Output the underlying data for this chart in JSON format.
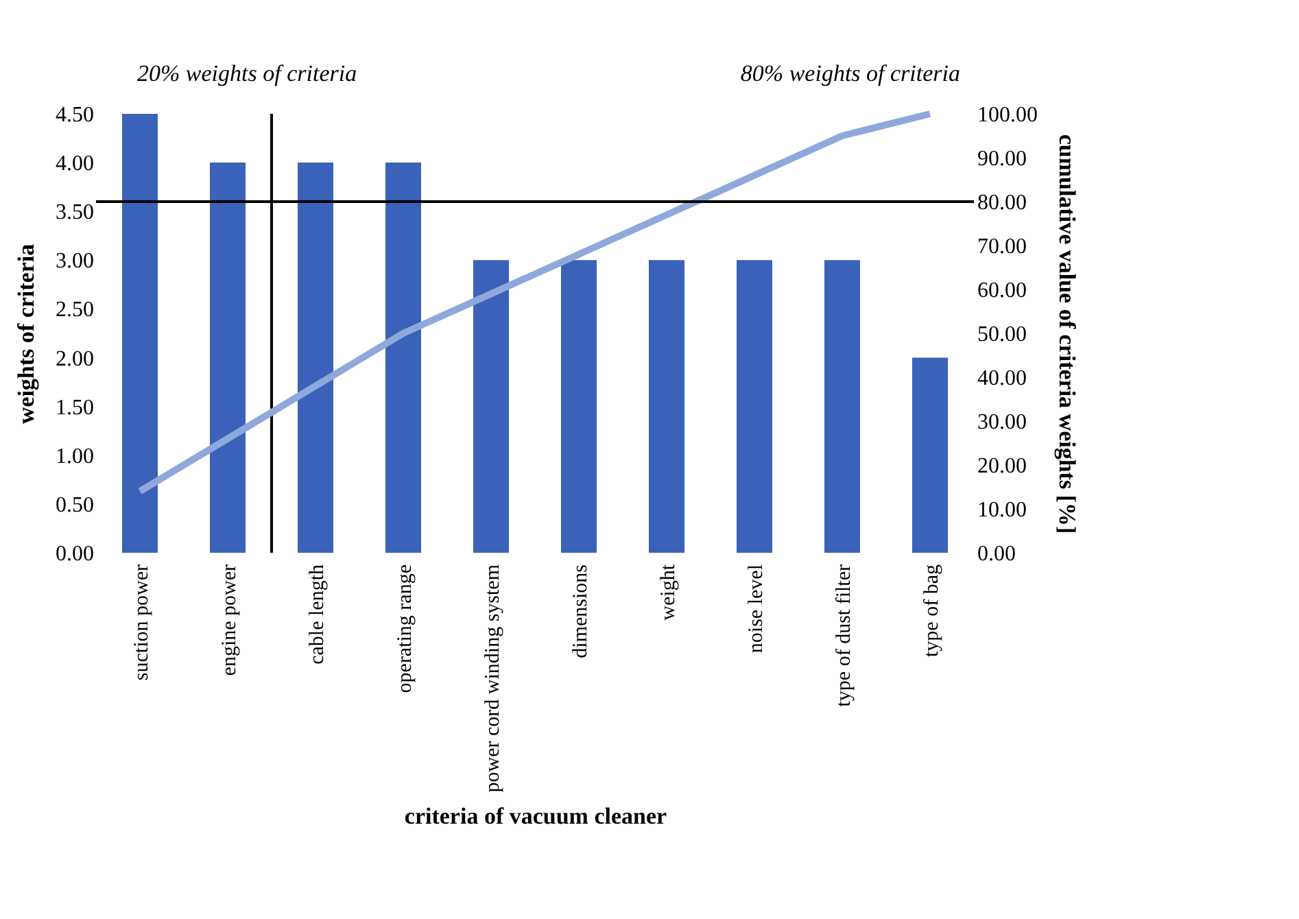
{
  "chart_data": {
    "type": "bar",
    "xlabel": "criteria of vacuum cleaner",
    "ylabel": "weights of criteria",
    "y2label": "cumulative value of criteria weights [%]",
    "categories": [
      "suction power",
      "engine power",
      "cable length",
      "operating range",
      "power cord winding system",
      "dimensions",
      "weight",
      "noise level",
      "type of dust filter",
      "type of bag"
    ],
    "series": [
      {
        "type": "bar",
        "color": "#3a62b8",
        "values": [
          4.5,
          4,
          4,
          4,
          3,
          3,
          3,
          3,
          3,
          2
        ]
      },
      {
        "type": "line",
        "axis": "y2",
        "color": "#8fa8dc",
        "values": [
          14,
          26,
          38,
          50,
          59,
          68,
          77,
          86,
          95,
          100
        ]
      }
    ],
    "ylim": [
      0,
      4.5
    ],
    "yticks": [
      {
        "value": 0,
        "label": "0.00"
      },
      {
        "value": 0.5,
        "label": "0.50"
      },
      {
        "value": 1,
        "label": "1.00"
      },
      {
        "value": 1.5,
        "label": "1.50"
      },
      {
        "value": 2,
        "label": "2.00"
      },
      {
        "value": 2.5,
        "label": "2.50"
      },
      {
        "value": 3,
        "label": "3.00"
      },
      {
        "value": 3.5,
        "label": "3.50"
      },
      {
        "value": 4,
        "label": "4.00"
      },
      {
        "value": 4.5,
        "label": "4.50"
      }
    ],
    "y2lim": [
      0,
      100
    ],
    "y2ticks": [
      {
        "value": 0,
        "label": "0.00"
      },
      {
        "value": 10,
        "label": "10.00"
      },
      {
        "value": 20,
        "label": "20.00"
      },
      {
        "value": 30,
        "label": "30.00"
      },
      {
        "value": 40,
        "label": "40.00"
      },
      {
        "value": 50,
        "label": "50.00"
      },
      {
        "value": 60,
        "label": "60.00"
      },
      {
        "value": 70,
        "label": "70.00"
      },
      {
        "value": 80,
        "label": "80.00"
      },
      {
        "value": 90,
        "label": "90.00"
      },
      {
        "value": 100,
        "label": "100.00"
      }
    ],
    "ref_lines": [
      {
        "axis": "y2",
        "value": 80,
        "color": "#000000"
      }
    ],
    "annotations": [
      "20% weights of criteria",
      "80% weights of criteria"
    ],
    "grid": false,
    "marker": "none",
    "line_style": "solid"
  }
}
